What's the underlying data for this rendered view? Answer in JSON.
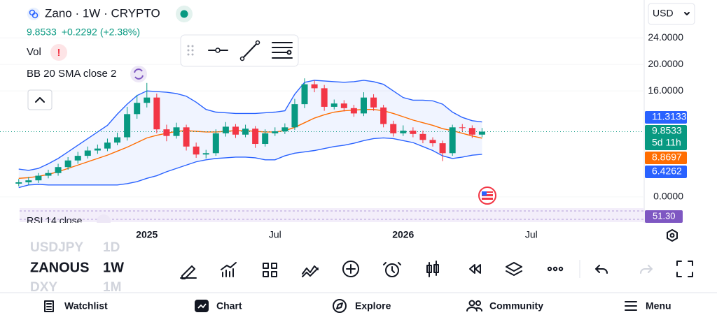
{
  "header": {
    "change": "+0.2292",
    "change_pct": "(+2.38%)"
  },
  "indicators": [
    "Vol",
    "BB 20 SMA close 2"
  ],
  "currency": "USD",
  "countdown": "5d 11h",
  "rsi": {
    "label": "RSI 14 close",
    "value": "51.30"
  },
  "symbols": [
    {
      "symbol": "USDJPY",
      "interval": "1D"
    },
    {
      "symbol": "ZANOUS",
      "interval": "1W"
    },
    {
      "symbol": "DXY",
      "interval": "1M"
    }
  ],
  "nav": [
    "Watchlist",
    "Chart",
    "Explore",
    "Community",
    "Menu"
  ],
  "chart_data": {
    "type": "candlestick",
    "title": "Zano · 1W · CRYPTO",
    "up_color": "#089981",
    "down_color": "#f23645",
    "band_color": "#2962ff",
    "basis_color": "#ff6d00",
    "xlim": [
      -29.8,
      100.9
    ],
    "xticks": [
      {
        "value": 0,
        "label": "2025"
      },
      {
        "value": 26,
        "label": "Jul"
      },
      {
        "value": 52,
        "label": "2026"
      },
      {
        "value": 78,
        "label": "Jul"
      }
    ],
    "ylim": [
      -1.7,
      29.2
    ],
    "yticks": [
      {
        "value": 0,
        "label": "0.0000"
      },
      {
        "value": 16,
        "label": "16.0000"
      },
      {
        "value": 20,
        "label": "20.0000"
      },
      {
        "value": 24,
        "label": "24.0000"
      }
    ],
    "x": [
      -26,
      -24,
      -22,
      -20,
      -18,
      -16,
      -14,
      -12,
      -10,
      -8,
      -6,
      -4,
      -2,
      0,
      2,
      4,
      6,
      8,
      10,
      12,
      14,
      16,
      18,
      20,
      22,
      24,
      26,
      28,
      30,
      32,
      34,
      36,
      38,
      40,
      42,
      44,
      46,
      48,
      50,
      52,
      54,
      56,
      58,
      60,
      62,
      64,
      66,
      68
    ],
    "open": [
      2.0,
      2.2,
      2.5,
      3.2,
      3.6,
      4.5,
      5.5,
      6.2,
      7.0,
      7.3,
      8.2,
      9.0,
      12.5,
      14.2,
      15.0,
      10.2,
      9.2,
      10.5,
      7.6,
      6.4,
      6.6,
      9.6,
      10.6,
      9.4,
      10.3,
      8.0,
      9.6,
      9.9,
      10.5,
      14.0,
      17.0,
      16.4,
      13.6,
      14.1,
      13.4,
      12.6,
      15.0,
      13.5,
      11.0,
      9.6,
      10.0,
      9.5,
      8.6,
      8.1,
      6.6,
      10.5,
      10.4,
      9.4
    ],
    "high": [
      2.7,
      3.0,
      3.6,
      4.1,
      5.0,
      6.0,
      6.8,
      7.6,
      7.9,
      8.8,
      9.7,
      13.6,
      15.4,
      17.2,
      15.6,
      10.9,
      11.2,
      10.9,
      8.2,
      7.1,
      10.2,
      11.3,
      11.0,
      10.9,
      10.7,
      10.2,
      10.5,
      11.1,
      14.8,
      17.9,
      17.6,
      16.9,
      14.7,
      14.6,
      13.9,
      15.8,
      15.5,
      13.9,
      11.5,
      10.8,
      10.5,
      10.0,
      9.0,
      8.5,
      10.9,
      11.0,
      10.8,
      10.4
    ],
    "low": [
      1.6,
      1.8,
      2.1,
      2.8,
      3.2,
      4.1,
      5.0,
      5.8,
      6.5,
      6.9,
      7.8,
      8.5,
      11.8,
      13.5,
      9.6,
      8.4,
      8.8,
      7.0,
      5.9,
      5.8,
      6.2,
      9.1,
      8.9,
      9.0,
      7.4,
      7.6,
      9.2,
      9.5,
      10.1,
      13.4,
      15.8,
      13.0,
      13.2,
      12.9,
      12.1,
      12.2,
      13.0,
      10.5,
      9.1,
      9.2,
      9.0,
      8.1,
      7.6,
      5.4,
      6.2,
      9.9,
      8.9,
      9.0
    ],
    "close": [
      2.2,
      2.5,
      3.2,
      3.6,
      4.5,
      5.5,
      6.2,
      7.0,
      7.3,
      8.2,
      9.0,
      12.5,
      14.2,
      15.0,
      10.2,
      9.2,
      10.5,
      7.6,
      6.4,
      6.6,
      9.6,
      10.6,
      9.4,
      10.3,
      8.0,
      9.6,
      9.9,
      10.5,
      14.0,
      17.0,
      16.4,
      13.6,
      14.1,
      13.4,
      12.6,
      15.0,
      13.5,
      11.0,
      9.6,
      10.0,
      9.5,
      8.6,
      8.1,
      6.6,
      10.5,
      10.4,
      9.4,
      9.8533
    ],
    "bands": {
      "upper": [
        4.2,
        4.0,
        4.3,
        5.0,
        5.8,
        6.8,
        7.8,
        8.8,
        9.8,
        10.8,
        12.5,
        14.0,
        15.3,
        16.0,
        15.9,
        15.8,
        15.6,
        15.2,
        14.3,
        13.2,
        12.8,
        12.7,
        12.6,
        12.6,
        12.6,
        12.7,
        12.8,
        13.0,
        15.5,
        17.3,
        17.6,
        17.5,
        17.4,
        17.3,
        17.4,
        17.6,
        17.4,
        17.0,
        16.0,
        15.0,
        14.6,
        14.6,
        14.5,
        14.0,
        12.8,
        12.0,
        11.5,
        11.3133
      ],
      "basis": [
        2.8,
        2.9,
        3.1,
        3.4,
        3.8,
        4.3,
        4.8,
        5.3,
        5.8,
        6.3,
        6.9,
        7.5,
        8.2,
        8.9,
        9.3,
        9.6,
        9.9,
        10.0,
        9.9,
        9.8,
        9.8,
        9.9,
        10.0,
        10.0,
        9.9,
        9.8,
        9.8,
        10.0,
        10.5,
        11.2,
        11.9,
        12.4,
        12.8,
        13.0,
        13.1,
        13.2,
        13.2,
        13.0,
        12.6,
        12.1,
        11.6,
        11.2,
        10.8,
        10.3,
        10.0,
        9.6,
        9.2,
        8.8697
      ],
      "lower": [
        1.4,
        1.8,
        1.9,
        1.8,
        1.8,
        1.8,
        1.8,
        1.8,
        1.8,
        1.8,
        1.8,
        2.0,
        2.3,
        2.8,
        3.2,
        3.8,
        4.3,
        4.8,
        5.3,
        5.6,
        5.8,
        5.9,
        6.0,
        6.0,
        5.9,
        5.6,
        5.6,
        6.2,
        6.6,
        6.8,
        7.0,
        7.3,
        7.6,
        7.8,
        8.1,
        8.5,
        8.8,
        8.9,
        8.8,
        8.5,
        8.2,
        7.6,
        7.0,
        6.2,
        5.8,
        6.0,
        6.3,
        6.4262
      ]
    }
  }
}
